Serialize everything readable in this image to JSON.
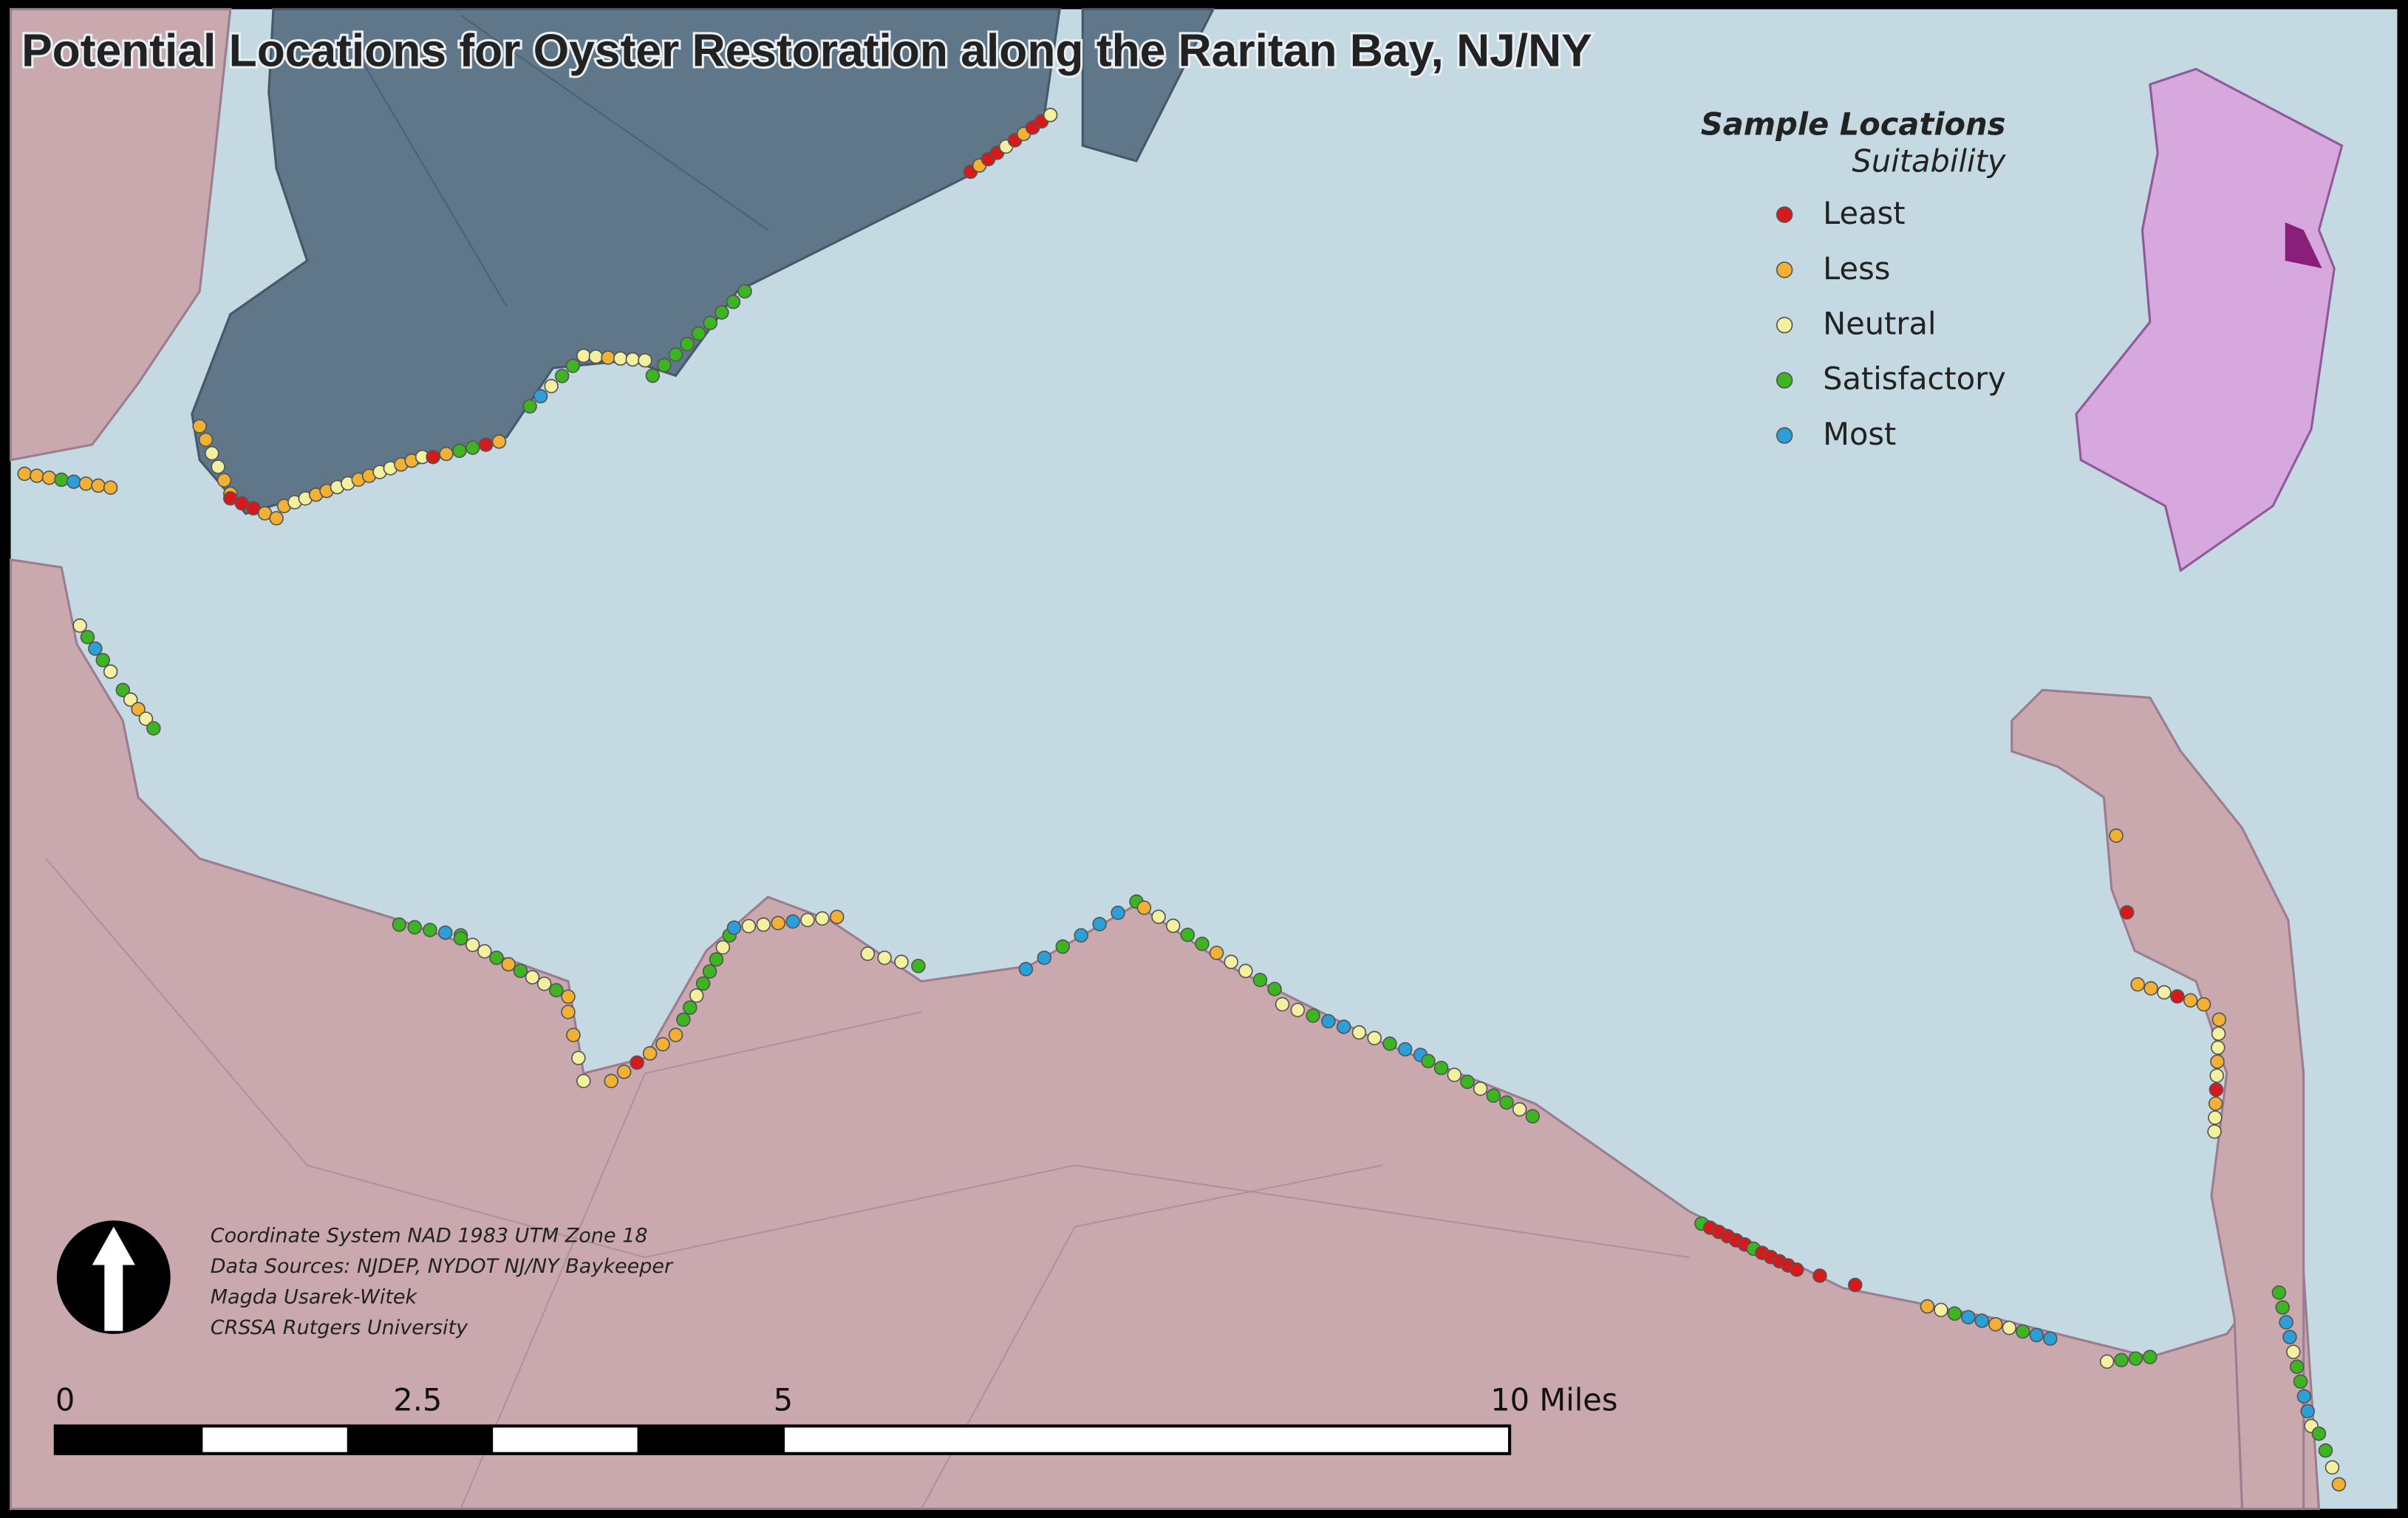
{
  "title": "Potential Locations for Oyster Restoration along the Raritan Bay, NJ/NY",
  "legend": {
    "title": "Sample Locations",
    "subtitle": "Suitability",
    "items": [
      {
        "label": "Least",
        "color": "#d7191c"
      },
      {
        "label": "Less",
        "color": "#f2b134"
      },
      {
        "label": "Neutral",
        "color": "#f3f0a0"
      },
      {
        "label": "Satisfactory",
        "color": "#3cb521"
      },
      {
        "label": "Most",
        "color": "#2a9fd8"
      }
    ]
  },
  "credits": [
    "Coordinate System NAD 1983 UTM Zone 18",
    "Data Sources: NJDEP, NYDOT NJ/NY Baykeeper",
    "Magda Usarek-Witek",
    "CRSSA Rutgers University"
  ],
  "scale_bar": {
    "labels": [
      "0",
      "2.5",
      "5",
      "10 Miles"
    ]
  }
}
